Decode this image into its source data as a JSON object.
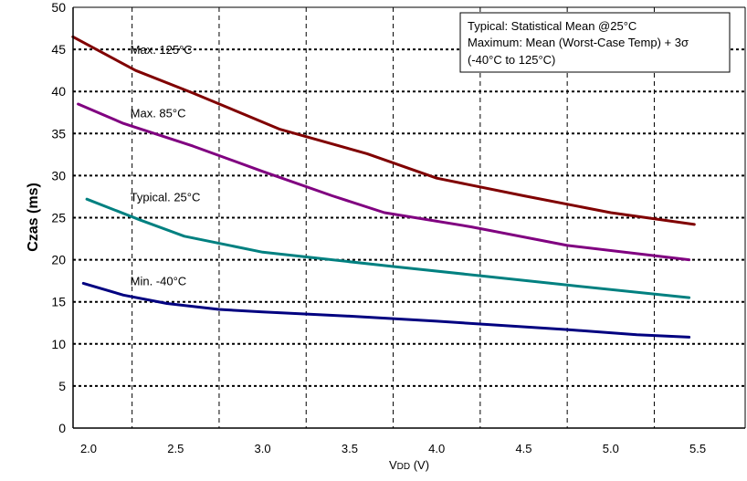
{
  "chart_data": {
    "type": "line",
    "title": "",
    "xlabel": "VDD (V)",
    "xlabel_main": "V",
    "xlabel_sub": "DD",
    "xlabel_unit": " (V)",
    "ylabel": "Czas (ms)",
    "xlim": [
      1.9,
      5.75
    ],
    "ylim": [
      0,
      50
    ],
    "x_ticks": [
      "2.0",
      "2.5",
      "3.0",
      "3.5",
      "4.0",
      "4.5",
      "5.0",
      "5.5"
    ],
    "y_ticks": [
      "0",
      "5",
      "10",
      "15",
      "20",
      "25",
      "30",
      "35",
      "40",
      "45",
      "50"
    ],
    "grid": true,
    "legend_box": {
      "placement": "top-right",
      "lines": [
        "Typical: Statistical Mean @25°C",
        "Maximum: Mean (Worst-Case Temp) + 3σ",
        "(-40°C to 125°C)"
      ]
    },
    "series": [
      {
        "name": "Max. 125°C",
        "color": "#800000",
        "x": [
          1.91,
          2.27,
          2.6,
          3.1,
          3.6,
          4.0,
          4.5,
          5.0,
          5.48
        ],
        "y": [
          46.5,
          42.5,
          39.8,
          35.5,
          32.6,
          29.7,
          27.6,
          25.6,
          24.2
        ]
      },
      {
        "name": "Max. 85°C",
        "color": "#800080",
        "x": [
          1.94,
          2.2,
          2.6,
          3.0,
          3.4,
          3.7,
          4.2,
          4.75,
          5.45
        ],
        "y": [
          38.5,
          36.2,
          33.5,
          30.5,
          27.6,
          25.6,
          23.9,
          21.7,
          20.0
        ]
      },
      {
        "name": "Typical. 25°C",
        "color": "#008080",
        "x": [
          1.99,
          2.3,
          2.55,
          3.0,
          3.75,
          4.25,
          4.75,
          5.45
        ],
        "y": [
          27.2,
          24.7,
          22.8,
          20.9,
          19.2,
          18.1,
          17.0,
          15.5
        ]
      },
      {
        "name": "Min. -40°C",
        "color": "#000080",
        "x": [
          1.97,
          2.2,
          2.45,
          2.75,
          3.0,
          3.5,
          4.0,
          4.75,
          5.15,
          5.45
        ],
        "y": [
          17.2,
          15.8,
          14.8,
          14.1,
          13.8,
          13.3,
          12.7,
          11.7,
          11.1,
          10.8
        ]
      }
    ],
    "annotations": [
      {
        "text": "Max. 125°C",
        "x": 2.25,
        "y": 45
      },
      {
        "text": "Max. 85°C",
        "x": 2.25,
        "y": 37.5
      },
      {
        "text": "Typical. 25°C",
        "x": 2.25,
        "y": 27.5
      },
      {
        "text": "Min. -40°C",
        "x": 2.25,
        "y": 17.5
      }
    ]
  }
}
